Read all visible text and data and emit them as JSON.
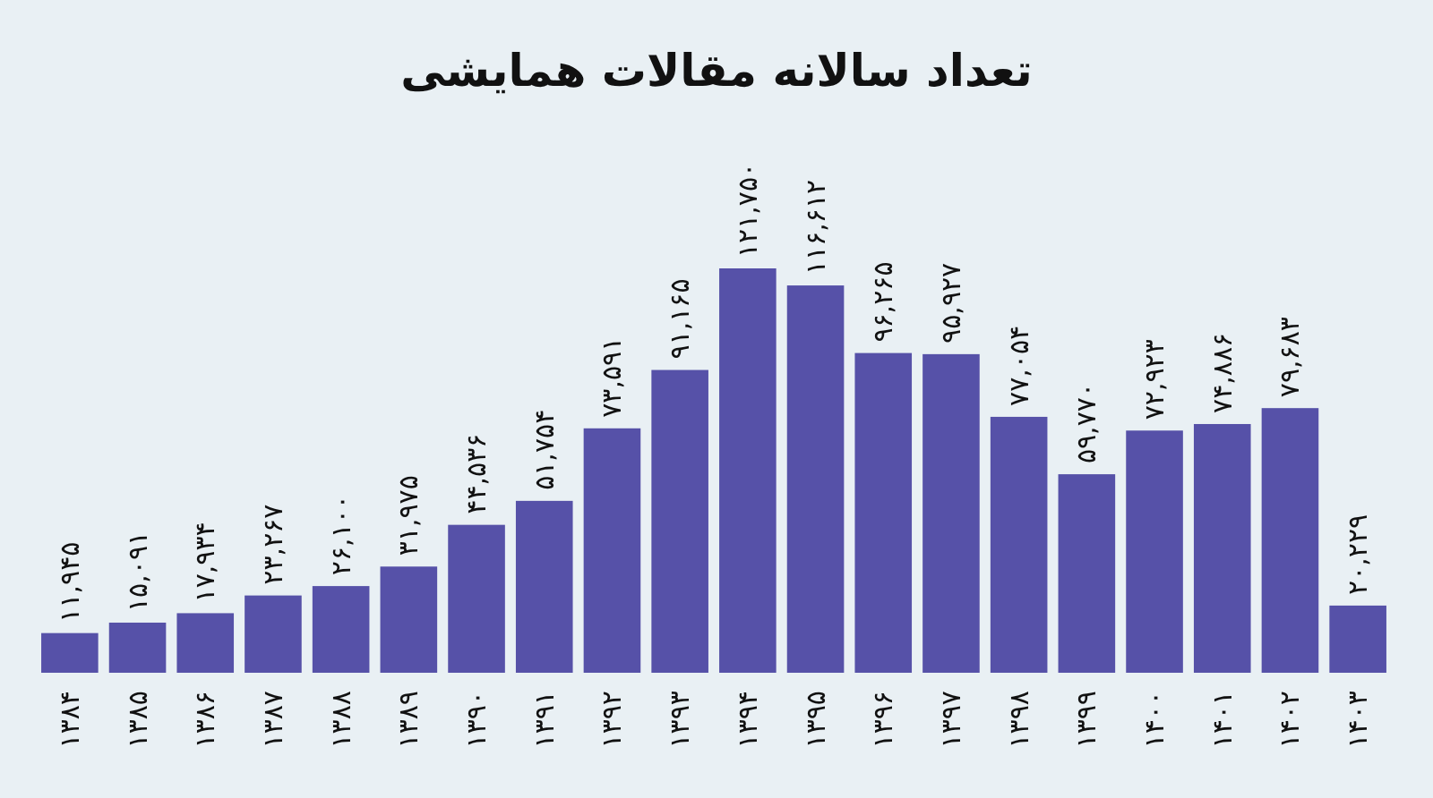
{
  "chart_data": {
    "type": "bar",
    "title": "تعداد سالانه مقالات همایشی",
    "categories": [
      "۱۳۸۴",
      "۱۳۸۵",
      "۱۳۸۶",
      "۱۳۸۷",
      "۱۳۸۸",
      "۱۳۸۹",
      "۱۳۹۰",
      "۱۳۹۱",
      "۱۳۹۲",
      "۱۳۹۳",
      "۱۳۹۴",
      "۱۳۹۵",
      "۱۳۹۶",
      "۱۳۹۷",
      "۱۳۹۸",
      "۱۳۹۹",
      "۱۴۰۰",
      "۱۴۰۱",
      "۱۴۰۲",
      "۱۴۰۳"
    ],
    "values": [
      11945,
      15091,
      17934,
      23267,
      26100,
      31975,
      44536,
      51754,
      73591,
      91165,
      121750,
      116612,
      96265,
      95927,
      77054,
      59770,
      72923,
      74886,
      79683,
      20229
    ],
    "value_labels": [
      "۱۱,۹۴۵",
      "۱۵,۰۹۱",
      "۱۷,۹۳۴",
      "۲۳,۲۶۷",
      "۲۶,۱۰۰",
      "۳۱,۹۷۵",
      "۴۴,۵۳۶",
      "۵۱,۷۵۴",
      "۷۳,۵۹۱",
      "۹۱,۱۶۵",
      "۱۲۱,۷۵۰",
      "۱۱۶,۶۱۲",
      "۹۶,۲۶۵",
      "۹۵,۹۲۷",
      "۷۷,۰۵۴",
      "۵۹,۷۷۰",
      "۷۲,۹۲۳",
      "۷۴,۸۸۶",
      "۷۹,۶۸۳",
      "۲۰,۲۲۹"
    ],
    "color": "#5651a8"
  }
}
